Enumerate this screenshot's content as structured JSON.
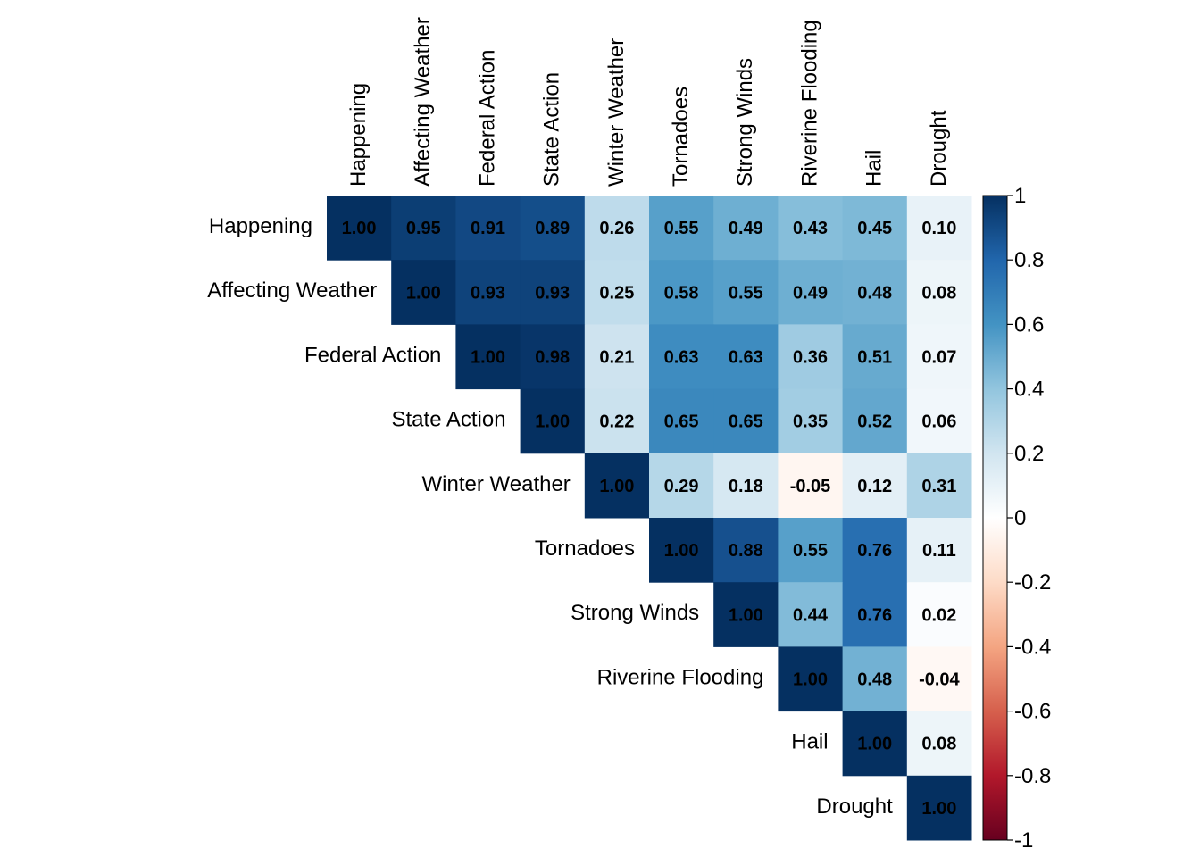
{
  "chart_data": {
    "type": "heatmap",
    "title": "",
    "layout": "upper-triangle",
    "variables": [
      "Happening",
      "Affecting Weather",
      "Federal Action",
      "State Action",
      "Winter Weather",
      "Tornadoes",
      "Strong Winds",
      "Riverine Flooding",
      "Hail",
      "Drought"
    ],
    "matrix_labels": [
      [
        "1.00",
        "0.95",
        "0.91",
        "0.89",
        "0.26",
        "0.55",
        "0.49",
        "0.43",
        "0.45",
        "0.10"
      ],
      [
        "",
        "1.00",
        "0.93",
        "0.93",
        "0.25",
        "0.58",
        "0.55",
        "0.49",
        "0.48",
        "0.08"
      ],
      [
        "",
        "",
        "1.00",
        "0.98",
        "0.21",
        "0.63",
        "0.63",
        "0.36",
        "0.51",
        "0.07"
      ],
      [
        "",
        "",
        "",
        "1.00",
        "0.22",
        "0.65",
        "0.65",
        "0.35",
        "0.52",
        "0.06"
      ],
      [
        "",
        "",
        "",
        "",
        "1.00",
        "0.29",
        "0.18",
        "-0.05",
        "0.12",
        "0.31"
      ],
      [
        "",
        "",
        "",
        "",
        "",
        "1.00",
        "0.88",
        "0.55",
        "0.76",
        "0.11"
      ],
      [
        "",
        "",
        "",
        "",
        "",
        "",
        "1.00",
        "0.44",
        "0.76",
        "0.02"
      ],
      [
        "",
        "",
        "",
        "",
        "",
        "",
        "",
        "1.00",
        "0.48",
        "-0.04"
      ],
      [
        "",
        "",
        "",
        "",
        "",
        "",
        "",
        "",
        "1.00",
        "0.08"
      ],
      [
        "",
        "",
        "",
        "",
        "",
        "",
        "",
        "",
        "",
        "1.00"
      ]
    ],
    "matrix": [
      [
        1.0,
        0.95,
        0.91,
        0.89,
        0.26,
        0.55,
        0.49,
        0.43,
        0.45,
        0.1
      ],
      [
        null,
        1.0,
        0.93,
        0.93,
        0.25,
        0.58,
        0.55,
        0.49,
        0.48,
        0.08
      ],
      [
        null,
        null,
        1.0,
        0.98,
        0.21,
        0.63,
        0.63,
        0.36,
        0.51,
        0.07
      ],
      [
        null,
        null,
        null,
        1.0,
        0.22,
        0.65,
        0.65,
        0.35,
        0.52,
        0.06
      ],
      [
        null,
        null,
        null,
        null,
        1.0,
        0.29,
        0.18,
        -0.05,
        0.12,
        0.31
      ],
      [
        null,
        null,
        null,
        null,
        null,
        1.0,
        0.88,
        0.55,
        0.76,
        0.11
      ],
      [
        null,
        null,
        null,
        null,
        null,
        null,
        1.0,
        0.44,
        0.76,
        0.02
      ],
      [
        null,
        null,
        null,
        null,
        null,
        null,
        null,
        1.0,
        0.48,
        -0.04
      ],
      [
        null,
        null,
        null,
        null,
        null,
        null,
        null,
        null,
        1.0,
        0.08
      ],
      [
        null,
        null,
        null,
        null,
        null,
        null,
        null,
        null,
        null,
        1.0
      ]
    ],
    "colorbar": {
      "range": [
        -1,
        1
      ],
      "ticks": [
        1,
        0.8,
        0.6,
        0.4,
        0.2,
        0,
        -0.2,
        -0.4,
        -0.6,
        -0.8,
        -1
      ],
      "tick_labels": [
        "1",
        "0.8",
        "0.6",
        "0.4",
        "0.2",
        "0",
        "-0.2",
        "-0.4",
        "-0.6",
        "-0.8",
        "-1"
      ]
    },
    "color_scale": [
      {
        "value": -1.0,
        "color": "#67001f"
      },
      {
        "value": -0.8,
        "color": "#b2182b"
      },
      {
        "value": -0.6,
        "color": "#d6604d"
      },
      {
        "value": -0.4,
        "color": "#f4a582"
      },
      {
        "value": -0.2,
        "color": "#fddbc7"
      },
      {
        "value": 0.0,
        "color": "#ffffff"
      },
      {
        "value": 0.2,
        "color": "#d1e5f0"
      },
      {
        "value": 0.4,
        "color": "#92c5de"
      },
      {
        "value": 0.6,
        "color": "#4393c3"
      },
      {
        "value": 0.8,
        "color": "#2166ac"
      },
      {
        "value": 1.0,
        "color": "#053061"
      }
    ],
    "grid": false
  }
}
